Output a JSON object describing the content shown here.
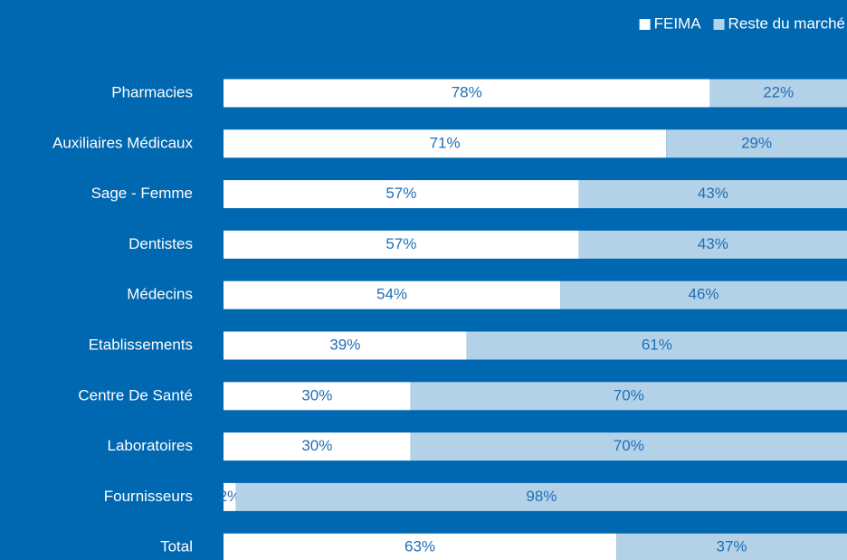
{
  "chart_data": {
    "type": "stacked-bar-horizontal",
    "categories": [
      "Pharmacies",
      "Auxiliaires Médicaux",
      "Sage - Femme",
      "Dentistes",
      "Médecins",
      "Etablissements",
      "Centre De Santé",
      "Laboratoires",
      "Fournisseurs",
      "Total"
    ],
    "series": [
      {
        "name": "FEIMA",
        "color": "#ffffff",
        "values": [
          78,
          71,
          57,
          57,
          54,
          39,
          30,
          30,
          2,
          63
        ],
        "value_labels": [
          "78%",
          "71%",
          "57%",
          "57%",
          "54%",
          "39%",
          "30%",
          "30%",
          "2%",
          "63%"
        ]
      },
      {
        "name": "Reste du marché",
        "color": "#b3d2e8",
        "values": [
          22,
          29,
          43,
          43,
          46,
          61,
          70,
          70,
          98,
          37
        ],
        "value_labels": [
          "22%",
          "29%",
          "43%",
          "43%",
          "46%",
          "61%",
          "70%",
          "70%",
          "98%",
          "37%"
        ]
      }
    ],
    "xlim": [
      0,
      100
    ],
    "legend": "top-right"
  }
}
